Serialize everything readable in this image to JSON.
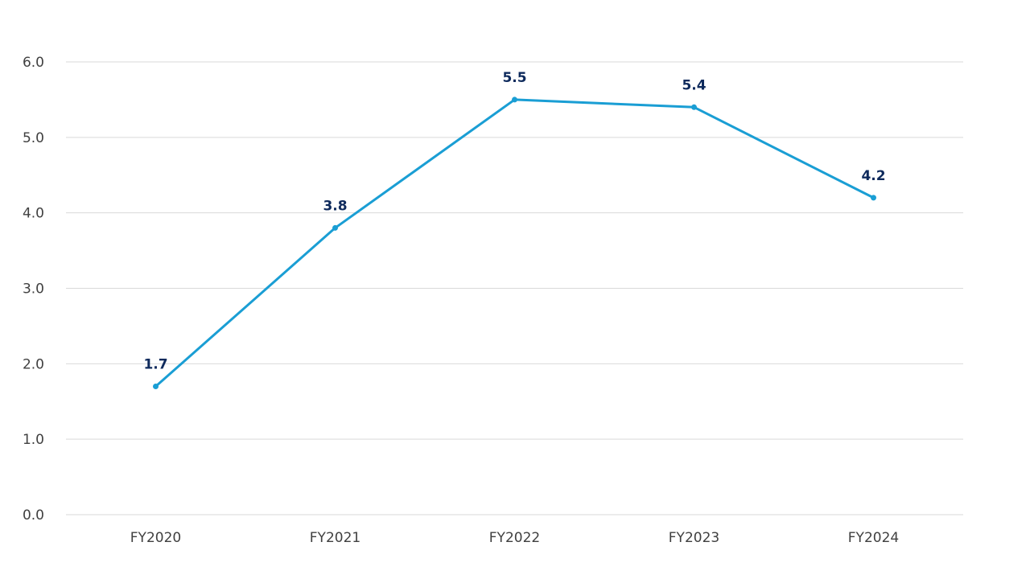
{
  "chart_data": {
    "type": "line",
    "categories": [
      "FY2020",
      "FY2021",
      "FY2022",
      "FY2023",
      "FY2024"
    ],
    "series": [
      {
        "values": [
          1.7,
          3.8,
          5.5,
          5.4,
          4.2
        ]
      }
    ],
    "data_labels": [
      "1.7",
      "3.8",
      "5.5",
      "5.4",
      "4.2"
    ],
    "y_ticks": [
      "0.0",
      "1.0",
      "2.0",
      "3.0",
      "4.0",
      "5.0",
      "6.0"
    ],
    "ylim": [
      0,
      6
    ],
    "grid": true,
    "legend": "none",
    "colors": {
      "line": "#1a9ed4",
      "label": "#0e2a5c",
      "grid": "#d9d9d9"
    }
  }
}
